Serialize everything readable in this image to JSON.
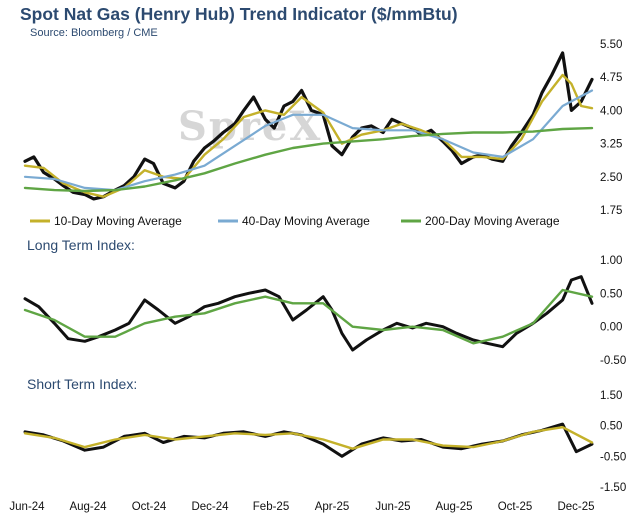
{
  "header": {
    "title": "Spot Nat Gas (Henry Hub) Trend Indicator ($/mmBtu)",
    "source": "Source: Bloomberg / CME",
    "watermark": "SpreX"
  },
  "colors": {
    "price": "#111111",
    "ma10": "#c4b12a",
    "ma40": "#7aaad2",
    "ma200": "#5fa544",
    "long_index": "#111111",
    "long_smooth": "#5fa544",
    "short_index": "#111111",
    "short_smooth": "#c4b12a",
    "title": "#2c4a70"
  },
  "chart_data": [
    {
      "type": "line",
      "id": "price",
      "title": "Spot Nat Gas (Henry Hub) Trend Indicator ($/mmBtu)",
      "ylim": [
        1.75,
        5.5
      ],
      "yticks": [
        "5.50",
        "4.75",
        "4.00",
        "3.25",
        "2.50",
        "1.75"
      ],
      "x_range": [
        "2024-06-01",
        "2025-12-31"
      ],
      "xticks": [
        "Jun-24",
        "Aug-24",
        "Oct-24",
        "Dec-24",
        "Feb-25",
        "Apr-25",
        "Jun-25",
        "Aug-25",
        "Oct-25",
        "Dec-25"
      ],
      "legend": [
        "10-Day Moving Average",
        "40-Day Moving Average",
        "200-Day Moving Average"
      ],
      "legend_position": "bottom",
      "grid": false,
      "series": [
        {
          "key": "price",
          "x": [
            "2024-06-01",
            "2024-06-10",
            "2024-06-20",
            "2024-07-01",
            "2024-07-10",
            "2024-07-20",
            "2024-08-01",
            "2024-08-10",
            "2024-08-20",
            "2024-09-01",
            "2024-09-10",
            "2024-09-20",
            "2024-10-01",
            "2024-10-10",
            "2024-10-20",
            "2024-11-01",
            "2024-11-10",
            "2024-11-20",
            "2024-12-01",
            "2024-12-10",
            "2024-12-20",
            "2025-01-01",
            "2025-01-10",
            "2025-01-20",
            "2025-02-01",
            "2025-02-10",
            "2025-02-20",
            "2025-03-01",
            "2025-03-10",
            "2025-03-20",
            "2025-04-01",
            "2025-04-10",
            "2025-04-20",
            "2025-05-01",
            "2025-05-10",
            "2025-05-20",
            "2025-06-01",
            "2025-06-10",
            "2025-06-20",
            "2025-07-01",
            "2025-07-10",
            "2025-07-20",
            "2025-08-01",
            "2025-08-10",
            "2025-08-20",
            "2025-09-01",
            "2025-09-10",
            "2025-09-20",
            "2025-10-01",
            "2025-10-10",
            "2025-10-20",
            "2025-11-01",
            "2025-11-10",
            "2025-11-20",
            "2025-12-01",
            "2025-12-10",
            "2025-12-20",
            "2025-12-31"
          ],
          "y": [
            2.85,
            2.95,
            2.6,
            2.45,
            2.3,
            2.15,
            2.1,
            2.0,
            2.05,
            2.2,
            2.3,
            2.5,
            2.9,
            2.8,
            2.35,
            2.25,
            2.4,
            2.85,
            3.15,
            3.3,
            3.5,
            3.7,
            4.0,
            4.3,
            3.8,
            3.6,
            4.1,
            4.2,
            4.45,
            4.0,
            3.9,
            3.2,
            3.0,
            3.4,
            3.6,
            3.65,
            3.5,
            3.8,
            3.7,
            3.6,
            3.45,
            3.55,
            3.3,
            3.1,
            2.8,
            2.95,
            3.0,
            2.9,
            2.85,
            3.2,
            3.5,
            3.9,
            4.4,
            4.8,
            5.3,
            4.0,
            4.2,
            4.7
          ]
        },
        {
          "key": "ma10",
          "x": [
            "2024-06-01",
            "2024-06-20",
            "2024-07-10",
            "2024-08-01",
            "2024-08-20",
            "2024-09-10",
            "2024-10-01",
            "2024-10-20",
            "2024-11-10",
            "2024-12-01",
            "2024-12-20",
            "2025-01-10",
            "2025-02-01",
            "2025-02-20",
            "2025-03-10",
            "2025-04-01",
            "2025-04-20",
            "2025-05-10",
            "2025-06-01",
            "2025-06-20",
            "2025-07-10",
            "2025-08-01",
            "2025-08-20",
            "2025-09-10",
            "2025-10-01",
            "2025-10-20",
            "2025-11-10",
            "2025-12-01",
            "2025-12-10",
            "2025-12-20",
            "2025-12-31"
          ],
          "y": [
            2.75,
            2.7,
            2.35,
            2.15,
            2.05,
            2.25,
            2.65,
            2.5,
            2.45,
            3.0,
            3.35,
            3.85,
            4.0,
            3.9,
            4.3,
            3.95,
            3.25,
            3.45,
            3.55,
            3.7,
            3.55,
            3.35,
            2.95,
            2.95,
            2.9,
            3.35,
            4.2,
            4.8,
            4.6,
            4.1,
            4.05
          ]
        },
        {
          "key": "ma40",
          "x": [
            "2024-06-01",
            "2024-07-01",
            "2024-08-01",
            "2024-09-01",
            "2024-10-01",
            "2024-11-01",
            "2024-12-01",
            "2025-01-01",
            "2025-02-01",
            "2025-03-01",
            "2025-04-01",
            "2025-05-01",
            "2025-06-01",
            "2025-07-01",
            "2025-08-01",
            "2025-09-01",
            "2025-10-01",
            "2025-11-01",
            "2025-12-01",
            "2025-12-31"
          ],
          "y": [
            2.5,
            2.45,
            2.25,
            2.2,
            2.4,
            2.55,
            2.75,
            3.2,
            3.65,
            3.9,
            3.9,
            3.6,
            3.55,
            3.55,
            3.35,
            3.05,
            2.95,
            3.35,
            4.1,
            4.45
          ]
        },
        {
          "key": "ma200",
          "x": [
            "2024-06-01",
            "2024-07-01",
            "2024-08-01",
            "2024-09-01",
            "2024-10-01",
            "2024-11-01",
            "2024-12-01",
            "2025-01-01",
            "2025-02-01",
            "2025-03-01",
            "2025-04-01",
            "2025-05-01",
            "2025-06-01",
            "2025-07-01",
            "2025-08-01",
            "2025-09-01",
            "2025-10-01",
            "2025-11-01",
            "2025-12-01",
            "2025-12-31"
          ],
          "y": [
            2.25,
            2.2,
            2.18,
            2.2,
            2.28,
            2.42,
            2.58,
            2.8,
            3.0,
            3.15,
            3.25,
            3.3,
            3.35,
            3.42,
            3.47,
            3.5,
            3.5,
            3.52,
            3.58,
            3.6
          ]
        }
      ]
    },
    {
      "type": "line",
      "id": "long_term",
      "title": "Long Term Index:",
      "ylim": [
        -0.5,
        1.0
      ],
      "yticks": [
        "1.00",
        "0.50",
        "0.00",
        "-0.50"
      ],
      "grid": false,
      "series": [
        {
          "key": "long_index",
          "x": [
            "2024-06-01",
            "2024-06-15",
            "2024-07-01",
            "2024-07-15",
            "2024-08-01",
            "2024-08-15",
            "2024-09-01",
            "2024-09-15",
            "2024-10-01",
            "2024-10-15",
            "2024-11-01",
            "2024-11-15",
            "2024-12-01",
            "2024-12-15",
            "2025-01-01",
            "2025-01-15",
            "2025-02-01",
            "2025-02-15",
            "2025-03-01",
            "2025-03-15",
            "2025-04-01",
            "2025-04-10",
            "2025-04-20",
            "2025-05-01",
            "2025-05-15",
            "2025-06-01",
            "2025-06-15",
            "2025-07-01",
            "2025-07-15",
            "2025-08-01",
            "2025-08-15",
            "2025-09-01",
            "2025-09-15",
            "2025-10-01",
            "2025-10-15",
            "2025-11-01",
            "2025-11-15",
            "2025-12-01",
            "2025-12-10",
            "2025-12-20",
            "2025-12-31"
          ],
          "y": [
            0.42,
            0.3,
            0.05,
            -0.18,
            -0.22,
            -0.15,
            -0.05,
            0.05,
            0.4,
            0.25,
            0.05,
            0.15,
            0.3,
            0.35,
            0.45,
            0.5,
            0.55,
            0.45,
            0.1,
            0.25,
            0.45,
            0.25,
            -0.1,
            -0.35,
            -0.2,
            -0.05,
            0.05,
            -0.02,
            0.05,
            0.0,
            -0.1,
            -0.2,
            -0.25,
            -0.3,
            -0.1,
            0.05,
            0.2,
            0.4,
            0.7,
            0.75,
            0.35
          ]
        },
        {
          "key": "long_smooth",
          "x": [
            "2024-06-01",
            "2024-07-01",
            "2024-08-01",
            "2024-09-01",
            "2024-10-01",
            "2024-11-01",
            "2024-12-01",
            "2025-01-01",
            "2025-02-01",
            "2025-03-01",
            "2025-04-01",
            "2025-05-01",
            "2025-06-01",
            "2025-07-01",
            "2025-08-01",
            "2025-09-01",
            "2025-10-01",
            "2025-11-01",
            "2025-12-01",
            "2025-12-31"
          ],
          "y": [
            0.25,
            0.1,
            -0.15,
            -0.15,
            0.05,
            0.15,
            0.2,
            0.35,
            0.45,
            0.35,
            0.35,
            0.0,
            -0.05,
            0.0,
            -0.05,
            -0.25,
            -0.15,
            0.05,
            0.55,
            0.45
          ]
        }
      ]
    },
    {
      "type": "line",
      "id": "short_term",
      "title": "Short Term Index:",
      "ylim": [
        -1.5,
        1.5
      ],
      "yticks": [
        "1.50",
        "0.50",
        "-0.50",
        "-1.50"
      ],
      "grid": false,
      "series": [
        {
          "key": "short_index",
          "x": [
            "2024-06-01",
            "2024-06-20",
            "2024-07-10",
            "2024-08-01",
            "2024-08-20",
            "2024-09-10",
            "2024-10-01",
            "2024-10-20",
            "2024-11-10",
            "2024-12-01",
            "2024-12-20",
            "2025-01-10",
            "2025-02-01",
            "2025-02-20",
            "2025-03-10",
            "2025-04-01",
            "2025-04-20",
            "2025-05-10",
            "2025-06-01",
            "2025-06-20",
            "2025-07-10",
            "2025-08-01",
            "2025-08-20",
            "2025-09-10",
            "2025-10-01",
            "2025-10-20",
            "2025-11-10",
            "2025-12-01",
            "2025-12-15",
            "2025-12-31"
          ],
          "y": [
            0.3,
            0.2,
            0.0,
            -0.3,
            -0.2,
            0.15,
            0.25,
            -0.05,
            0.15,
            0.1,
            0.25,
            0.3,
            0.15,
            0.3,
            0.2,
            -0.1,
            -0.5,
            -0.1,
            0.1,
            0.0,
            0.05,
            -0.2,
            -0.25,
            -0.1,
            0.0,
            0.2,
            0.35,
            0.55,
            -0.35,
            -0.1
          ]
        },
        {
          "key": "short_smooth",
          "x": [
            "2024-06-01",
            "2024-07-01",
            "2024-08-01",
            "2024-09-01",
            "2024-10-01",
            "2024-11-01",
            "2024-12-01",
            "2025-01-01",
            "2025-02-01",
            "2025-03-01",
            "2025-04-01",
            "2025-05-01",
            "2025-06-01",
            "2025-07-01",
            "2025-08-01",
            "2025-09-01",
            "2025-10-01",
            "2025-11-01",
            "2025-12-01",
            "2025-12-31"
          ],
          "y": [
            0.25,
            0.1,
            -0.2,
            0.05,
            0.2,
            0.05,
            0.15,
            0.25,
            0.2,
            0.25,
            0.05,
            -0.25,
            0.05,
            0.05,
            -0.15,
            -0.2,
            0.0,
            0.3,
            0.45,
            -0.05
          ]
        }
      ]
    }
  ]
}
